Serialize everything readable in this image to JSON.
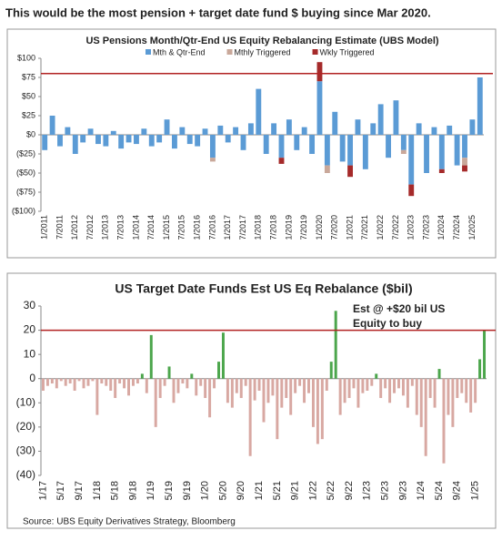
{
  "heading": "This would be the most pension + target date fund $ buying since Mar 2020.",
  "chart_data": [
    {
      "type": "stacked_bar",
      "title": "US Pensions Month/Qtr-End US Equity Rebalancing Estimate (UBS Model)",
      "categories": [
        "1/2011",
        null,
        "7/2011",
        null,
        "1/2012",
        null,
        "7/2012",
        null,
        "1/2013",
        null,
        "7/2013",
        null,
        "1/2014",
        null,
        "7/2014",
        null,
        "1/2015",
        null,
        "7/2015",
        null,
        "1/2016",
        null,
        "7/2016",
        null,
        "1/2017",
        null,
        "7/2017",
        null,
        "1/2018",
        null,
        "7/2018",
        null,
        "1/2019",
        null,
        "7/2019",
        null,
        "1/2020",
        null,
        "7/2020",
        null,
        "1/2021",
        null,
        "7/2021",
        null,
        "1/2022",
        null,
        "7/2022",
        null,
        "1/2023",
        null,
        "7/2023",
        null,
        "1/2024",
        null,
        "7/2024",
        null,
        "1/2025",
        null
      ],
      "series": [
        {
          "name": "Mth & Qtr-End",
          "color": "#5b9bd5",
          "values": [
            -20,
            25,
            -15,
            10,
            -25,
            -10,
            8,
            -12,
            -15,
            5,
            -18,
            -10,
            -12,
            8,
            -15,
            -10,
            20,
            -18,
            10,
            -12,
            -15,
            8,
            -30,
            12,
            -10,
            10,
            -20,
            15,
            60,
            -25,
            15,
            -30,
            20,
            -20,
            10,
            -25,
            70,
            -40,
            30,
            -35,
            -40,
            20,
            -45,
            15,
            40,
            -30,
            45,
            -20,
            -65,
            15,
            -50,
            10,
            -45,
            12,
            -40,
            -30,
            20,
            75
          ]
        },
        {
          "name": "Mthly Triggered",
          "color": "#c9a89a",
          "values": [
            0,
            0,
            0,
            0,
            0,
            0,
            0,
            0,
            0,
            0,
            0,
            0,
            0,
            0,
            0,
            0,
            0,
            0,
            0,
            0,
            0,
            0,
            -5,
            0,
            0,
            0,
            0,
            0,
            0,
            0,
            0,
            0,
            0,
            0,
            0,
            0,
            0,
            -10,
            0,
            0,
            0,
            0,
            0,
            0,
            0,
            0,
            0,
            -5,
            0,
            0,
            0,
            0,
            0,
            0,
            0,
            -10,
            0,
            0
          ]
        },
        {
          "name": "Wkly Triggered",
          "color": "#a52a2a",
          "values": [
            0,
            0,
            0,
            0,
            0,
            0,
            0,
            0,
            0,
            0,
            0,
            0,
            0,
            0,
            0,
            0,
            0,
            0,
            0,
            0,
            0,
            0,
            0,
            0,
            0,
            0,
            0,
            0,
            0,
            0,
            0,
            -8,
            0,
            0,
            0,
            0,
            25,
            0,
            0,
            0,
            -15,
            0,
            0,
            0,
            0,
            0,
            0,
            0,
            -15,
            0,
            0,
            0,
            -5,
            0,
            0,
            -8,
            0,
            0
          ]
        }
      ],
      "ylim": [
        -100,
        100
      ],
      "yticks": [
        {
          "value": -100,
          "label": "($100)"
        },
        {
          "value": -75,
          "label": "($75)"
        },
        {
          "value": -50,
          "label": "($50)"
        },
        {
          "value": -25,
          "label": "($25)"
        },
        {
          "value": 0,
          "label": "$0"
        },
        {
          "value": 25,
          "label": "$25"
        },
        {
          "value": 50,
          "label": "$50"
        },
        {
          "value": 75,
          "label": "$75"
        },
        {
          "value": 100,
          "label": "$100"
        }
      ],
      "ref_line": 80,
      "ref_color": "#b22222",
      "negative_label_color": "#b22222",
      "legend": "top"
    },
    {
      "type": "signed_bar",
      "title": "US Target Date Funds Est US Eq Rebalance ($bil)",
      "categories": [
        "1/17",
        null,
        null,
        null,
        "5/17",
        null,
        null,
        null,
        "9/17",
        null,
        null,
        null,
        "1/18",
        null,
        null,
        null,
        "5/18",
        null,
        null,
        null,
        "9/18",
        null,
        null,
        null,
        "1/19",
        null,
        null,
        null,
        "5/19",
        null,
        null,
        null,
        "9/19",
        null,
        null,
        null,
        "1/20",
        null,
        null,
        null,
        "5/20",
        null,
        null,
        null,
        "9/20",
        null,
        null,
        null,
        "1/21",
        null,
        null,
        null,
        "5/21",
        null,
        null,
        null,
        "9/21",
        null,
        null,
        null,
        "1/22",
        null,
        null,
        null,
        "5/22",
        null,
        null,
        null,
        "9/22",
        null,
        null,
        null,
        "1/23",
        null,
        null,
        null,
        "5/23",
        null,
        null,
        null,
        "9/23",
        null,
        null,
        null,
        "1/24",
        null,
        null,
        null,
        "5/24",
        null,
        null,
        null,
        "9/24",
        null,
        null,
        null,
        "1/25",
        null,
        null
      ],
      "values": [
        -5,
        -3,
        -2,
        -4,
        -1,
        -3,
        -2,
        -5,
        -1,
        -4,
        -3,
        -1,
        -15,
        -2,
        -3,
        -5,
        -8,
        -2,
        -4,
        -7,
        -3,
        -2,
        2,
        -6,
        18,
        -20,
        -8,
        -3,
        5,
        -10,
        -6,
        -2,
        -4,
        2,
        -7,
        -3,
        -8,
        -16,
        -4,
        7,
        19,
        -10,
        -12,
        -6,
        -8,
        -3,
        -32,
        -9,
        -5,
        -18,
        -10,
        -7,
        -25,
        -12,
        -8,
        -15,
        -6,
        -3,
        -10,
        -6,
        -20,
        -27,
        -25,
        -5,
        7,
        28,
        -15,
        -10,
        -8,
        -4,
        -12,
        -6,
        -5,
        -3,
        2,
        -8,
        -4,
        -10,
        -6,
        -4,
        -7,
        -12,
        -3,
        -15,
        -20,
        -32,
        -8,
        -12,
        4,
        -35,
        -15,
        -20,
        -8,
        -6,
        -10,
        -14,
        -10,
        8,
        20
      ],
      "positive_color": "#4ca64c",
      "negative_color": "#d8a8a2",
      "ylim": [
        -40,
        30
      ],
      "yticks": [
        {
          "value": -40,
          "label": "(40)"
        },
        {
          "value": -30,
          "label": "(30)"
        },
        {
          "value": -20,
          "label": "(20)"
        },
        {
          "value": -10,
          "label": "(10)"
        },
        0,
        10,
        20,
        30
      ],
      "ref_line": 20,
      "ref_color": "#b22222",
      "negative_label_color": "#b22222",
      "annotation": [
        "Est @ +$20 bil US",
        "Equity to buy"
      ],
      "annotation_color": "#1f2fa8",
      "source": "Source: UBS Equity Derivatives Strategy, Bloomberg"
    }
  ]
}
